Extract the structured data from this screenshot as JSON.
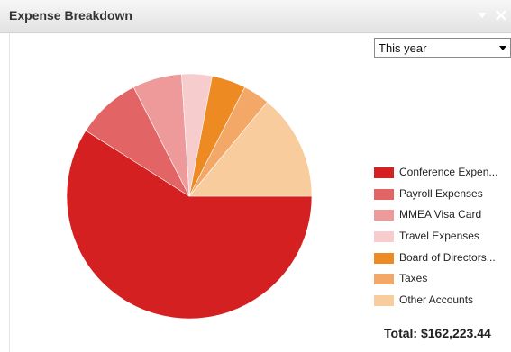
{
  "window": {
    "title": "Expense Breakdown",
    "chevron_icon": "chevron-down-icon",
    "close_icon": "close-icon"
  },
  "filter": {
    "selected": "This year",
    "arrow_icon": "caret-down-icon"
  },
  "legend": {
    "items": [
      {
        "label": "Conference Expen...",
        "color": "#d42020"
      },
      {
        "label": "Payroll Expenses",
        "color": "#e26464"
      },
      {
        "label": "MMEA Visa Card",
        "color": "#ee9a9a"
      },
      {
        "label": "Travel Expenses",
        "color": "#f7cccc"
      },
      {
        "label": "Board of Directors...",
        "color": "#ee8a22"
      },
      {
        "label": "Taxes",
        "color": "#f4a868"
      },
      {
        "label": "Other Accounts",
        "color": "#f8cc9c"
      }
    ]
  },
  "total": {
    "text": "Total: $162,223.44"
  },
  "chart_data": {
    "type": "pie",
    "categories": [
      "Conference Expen...",
      "Payroll Expenses",
      "MMEA Visa Card",
      "Travel Expenses",
      "Board of Directors...",
      "Taxes",
      "Other Accounts"
    ],
    "values": [
      59.0,
      8.5,
      6.5,
      4.0,
      4.5,
      3.5,
      14.0
    ],
    "colors": [
      "#d42020",
      "#e26464",
      "#ee9a9a",
      "#f7cccc",
      "#ee8a22",
      "#f4a868",
      "#f8cc9c"
    ],
    "start_angle_deg": 0,
    "direction": "clockwise",
    "legend_position": "right",
    "total": "$162,223.44"
  }
}
